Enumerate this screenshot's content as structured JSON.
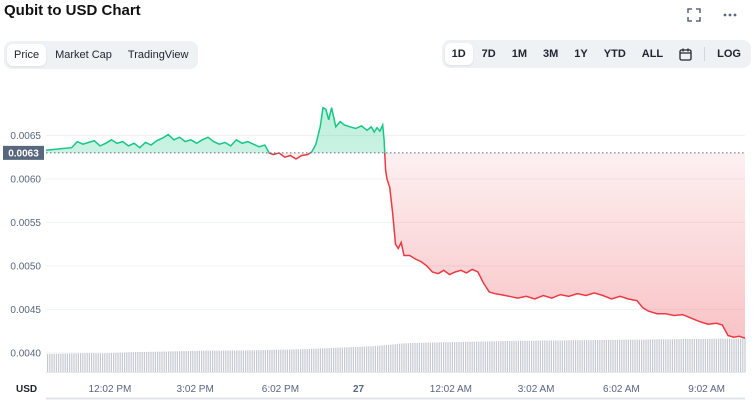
{
  "header": {
    "title": "Qubit to USD Chart"
  },
  "tabs": [
    {
      "label": "Price",
      "active": true
    },
    {
      "label": "Market Cap",
      "active": false
    },
    {
      "label": "TradingView",
      "active": false
    }
  ],
  "ranges": [
    {
      "label": "1D",
      "active": true
    },
    {
      "label": "7D",
      "active": false
    },
    {
      "label": "1M",
      "active": false
    },
    {
      "label": "3M",
      "active": false
    },
    {
      "label": "1Y",
      "active": false
    },
    {
      "label": "YTD",
      "active": false
    },
    {
      "label": "ALL",
      "active": false
    }
  ],
  "log_label": "LOG",
  "icons": {
    "fullscreen": "fullscreen-icon",
    "more": "more-icon",
    "calendar": "calendar-icon"
  },
  "colors": {
    "up": "#16c784",
    "down": "#ea3943",
    "volume": "#c4c9d2",
    "axis_text": "#58667e",
    "price_badge": "#58667e"
  },
  "chart_data": {
    "type": "line",
    "ylim": [
      0.00378,
      0.007
    ],
    "y_ticks": [
      {
        "label": "0.0065",
        "value": 0.0065
      },
      {
        "label": "0.0060",
        "value": 0.006
      },
      {
        "label": "0.0055",
        "value": 0.0055
      },
      {
        "label": "0.0050",
        "value": 0.005
      },
      {
        "label": "0.0045",
        "value": 0.0045
      },
      {
        "label": "0.0040",
        "value": 0.004
      }
    ],
    "x_ticks": [
      {
        "label": "12:02 PM",
        "t": 2.25
      },
      {
        "label": "3:02 PM",
        "t": 5.25
      },
      {
        "label": "6:02 PM",
        "t": 8.25
      },
      {
        "label": "27",
        "t": 11.0
      },
      {
        "label": "12:02 AM",
        "t": 14.25
      },
      {
        "label": "3:02 AM",
        "t": 17.25
      },
      {
        "label": "6:02 AM",
        "t": 20.25
      },
      {
        "label": "9:02 AM",
        "t": 23.25
      }
    ],
    "x_axis_label": "USD",
    "reference_value": 0.0063,
    "reference_label": "0.0063",
    "t_range": [
      0,
      24.6
    ],
    "series": [
      {
        "points": [
          [
            0,
            0.00633
          ],
          [
            0.3,
            0.00634
          ],
          [
            0.6,
            0.00635
          ],
          [
            0.9,
            0.00636
          ],
          [
            1.1,
            0.00643
          ],
          [
            1.3,
            0.0064
          ],
          [
            1.5,
            0.00642
          ],
          [
            1.7,
            0.00644
          ],
          [
            1.9,
            0.00638
          ],
          [
            2.1,
            0.00641
          ],
          [
            2.3,
            0.00645
          ],
          [
            2.5,
            0.00641
          ],
          [
            2.7,
            0.00643
          ],
          [
            2.9,
            0.00638
          ],
          [
            3.1,
            0.00641
          ],
          [
            3.3,
            0.00636
          ],
          [
            3.5,
            0.00642
          ],
          [
            3.7,
            0.00639
          ],
          [
            3.9,
            0.00644
          ],
          [
            4.1,
            0.00647
          ],
          [
            4.3,
            0.00651
          ],
          [
            4.5,
            0.00645
          ],
          [
            4.7,
            0.00648
          ],
          [
            4.9,
            0.00643
          ],
          [
            5.1,
            0.00645
          ],
          [
            5.3,
            0.00641
          ],
          [
            5.5,
            0.00645
          ],
          [
            5.7,
            0.00648
          ],
          [
            5.9,
            0.00643
          ],
          [
            6.1,
            0.0064
          ],
          [
            6.3,
            0.00642
          ],
          [
            6.5,
            0.00638
          ],
          [
            6.7,
            0.00645
          ],
          [
            6.9,
            0.00641
          ],
          [
            7.1,
            0.00643
          ],
          [
            7.3,
            0.0064
          ],
          [
            7.5,
            0.00637
          ],
          [
            7.7,
            0.00639
          ],
          [
            7.85,
            0.0063
          ],
          [
            8.0,
            0.00628
          ],
          [
            8.2,
            0.0063
          ],
          [
            8.4,
            0.00625
          ],
          [
            8.6,
            0.00627
          ],
          [
            8.8,
            0.00623
          ],
          [
            9.0,
            0.00627
          ],
          [
            9.2,
            0.00628
          ],
          [
            9.35,
            0.00631
          ],
          [
            9.5,
            0.0064
          ],
          [
            9.65,
            0.0066
          ],
          [
            9.75,
            0.00682
          ],
          [
            9.85,
            0.0068
          ],
          [
            9.95,
            0.00668
          ],
          [
            10.05,
            0.00682
          ],
          [
            10.2,
            0.0066
          ],
          [
            10.35,
            0.00666
          ],
          [
            10.5,
            0.00662
          ],
          [
            10.7,
            0.0066
          ],
          [
            10.9,
            0.00658
          ],
          [
            11.1,
            0.00661
          ],
          [
            11.3,
            0.00656
          ],
          [
            11.45,
            0.0066
          ],
          [
            11.55,
            0.00654
          ],
          [
            11.65,
            0.00659
          ],
          [
            11.75,
            0.00655
          ],
          [
            11.85,
            0.00662
          ],
          [
            11.9,
            0.00645
          ],
          [
            11.95,
            0.0061
          ],
          [
            12.0,
            0.006
          ],
          [
            12.1,
            0.0059
          ],
          [
            12.2,
            0.0056
          ],
          [
            12.3,
            0.00525
          ],
          [
            12.4,
            0.0052
          ],
          [
            12.5,
            0.00527
          ],
          [
            12.6,
            0.00512
          ],
          [
            12.8,
            0.00512
          ],
          [
            13.0,
            0.00508
          ],
          [
            13.2,
            0.00505
          ],
          [
            13.4,
            0.005
          ],
          [
            13.6,
            0.00493
          ],
          [
            13.8,
            0.00491
          ],
          [
            14.0,
            0.00495
          ],
          [
            14.2,
            0.0049
          ],
          [
            14.4,
            0.00493
          ],
          [
            14.6,
            0.00495
          ],
          [
            14.8,
            0.00492
          ],
          [
            15.0,
            0.00496
          ],
          [
            15.2,
            0.00493
          ],
          [
            15.4,
            0.0048
          ],
          [
            15.6,
            0.0047
          ],
          [
            15.8,
            0.00468
          ],
          [
            16.0,
            0.00467
          ],
          [
            16.3,
            0.00465
          ],
          [
            16.6,
            0.00463
          ],
          [
            16.9,
            0.00465
          ],
          [
            17.2,
            0.00462
          ],
          [
            17.5,
            0.00466
          ],
          [
            17.8,
            0.00463
          ],
          [
            18.1,
            0.00467
          ],
          [
            18.4,
            0.00465
          ],
          [
            18.7,
            0.00468
          ],
          [
            19.0,
            0.00466
          ],
          [
            19.3,
            0.00469
          ],
          [
            19.6,
            0.00466
          ],
          [
            19.9,
            0.00462
          ],
          [
            20.2,
            0.00465
          ],
          [
            20.5,
            0.00462
          ],
          [
            20.8,
            0.0046
          ],
          [
            21.0,
            0.00452
          ],
          [
            21.2,
            0.00448
          ],
          [
            21.5,
            0.00445
          ],
          [
            21.8,
            0.00445
          ],
          [
            22.1,
            0.00443
          ],
          [
            22.4,
            0.00444
          ],
          [
            22.7,
            0.0044
          ],
          [
            23.0,
            0.00436
          ],
          [
            23.3,
            0.00433
          ],
          [
            23.6,
            0.00434
          ],
          [
            23.8,
            0.00432
          ],
          [
            24.0,
            0.0042
          ],
          [
            24.2,
            0.00418
          ],
          [
            24.4,
            0.00419
          ],
          [
            24.6,
            0.00417
          ]
        ]
      }
    ],
    "volume": [
      [
        0,
        0.6
      ],
      [
        0.5,
        0.61
      ],
      [
        1.0,
        0.62
      ],
      [
        1.5,
        0.63
      ],
      [
        2.0,
        0.62
      ],
      [
        2.5,
        0.64
      ],
      [
        3.0,
        0.66
      ],
      [
        3.5,
        0.67
      ],
      [
        4.0,
        0.68
      ],
      [
        4.5,
        0.69
      ],
      [
        5.0,
        0.7
      ],
      [
        5.5,
        0.71
      ],
      [
        6.0,
        0.71
      ],
      [
        6.5,
        0.72
      ],
      [
        7.0,
        0.72
      ],
      [
        7.5,
        0.73
      ],
      [
        8.0,
        0.74
      ],
      [
        8.5,
        0.75
      ],
      [
        9.0,
        0.76
      ],
      [
        9.5,
        0.78
      ],
      [
        10.0,
        0.8
      ],
      [
        10.5,
        0.82
      ],
      [
        11.0,
        0.84
      ],
      [
        11.5,
        0.86
      ],
      [
        12.0,
        0.9
      ],
      [
        12.5,
        0.95
      ],
      [
        13.0,
        0.97
      ],
      [
        13.5,
        0.98
      ],
      [
        14.0,
        0.99
      ],
      [
        14.5,
        1.0
      ],
      [
        15.0,
        1.01
      ],
      [
        15.5,
        1.02
      ],
      [
        16.0,
        1.03
      ],
      [
        16.5,
        1.04
      ],
      [
        17.0,
        1.04
      ],
      [
        17.5,
        1.05
      ],
      [
        18.0,
        1.05
      ],
      [
        18.5,
        1.06
      ],
      [
        19.0,
        1.06
      ],
      [
        19.5,
        1.07
      ],
      [
        20.0,
        1.07
      ],
      [
        20.5,
        1.08
      ],
      [
        21.0,
        1.08
      ],
      [
        21.5,
        1.09
      ],
      [
        22.0,
        1.09
      ],
      [
        22.5,
        1.1
      ],
      [
        23.0,
        1.1
      ],
      [
        23.5,
        1.11
      ],
      [
        24.0,
        1.11
      ],
      [
        24.6,
        1.12
      ]
    ]
  }
}
